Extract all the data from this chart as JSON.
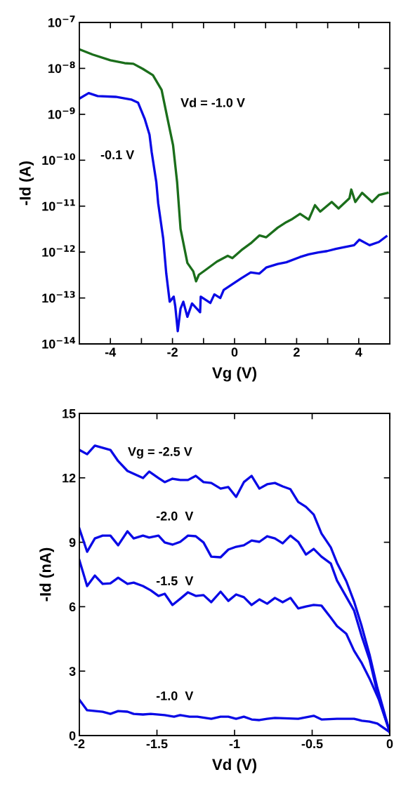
{
  "chart_data": [
    {
      "type": "line",
      "xlabel": "Vg (V)",
      "ylabel": "-Id (A)",
      "log": "y",
      "xlim": [
        -5,
        5
      ],
      "ylim": [
        1e-14,
        1e-07
      ],
      "xticks": [
        -4,
        {
          "value": -3,
          "label": null
        },
        -2,
        {
          "value": -1,
          "label": null
        },
        0,
        {
          "value": 1,
          "label": null
        },
        2,
        {
          "value": 3,
          "label": null
        },
        4
      ],
      "yticks": [
        {
          "value": 1e-14,
          "label": "10$^{−14}$"
        },
        {
          "value": 1e-13,
          "label": "10$^{−13}$"
        },
        {
          "value": 1e-12,
          "label": "10$^{−12}$"
        },
        {
          "value": 1e-11,
          "label": "10$^{−11}$"
        },
        {
          "value": 1e-10,
          "label": "10$^{−10}$"
        },
        {
          "value": 1e-09,
          "label": "10$^{−9}$"
        },
        {
          "value": 1e-08,
          "label": "10$^{−8}$"
        },
        {
          "value": 1e-07,
          "label": "10$^{−7}$"
        }
      ],
      "grid": false,
      "legend": false,
      "marker": "none",
      "line_style": "solid",
      "series": [
        {
          "name": "Vd = -1.0 V",
          "color": "#1b6e1b",
          "x": [
            -5,
            -4.57,
            -4.0,
            -3.54,
            -3.26,
            -2.96,
            -2.63,
            -2.35,
            -2.17,
            -1.98,
            -1.85,
            -1.74,
            -1.52,
            -1.33,
            -1.24,
            -1.15,
            -0.93,
            -0.57,
            -0.22,
            -0.07,
            0.22,
            0.52,
            0.8,
            1.02,
            1.39,
            1.67,
            1.83,
            2.11,
            2.39,
            2.59,
            2.76,
            3.13,
            3.35,
            3.7,
            3.76,
            3.89,
            4.11,
            4.43,
            4.65,
            4.93
          ],
          "values": [
            2.6e-08,
            2e-08,
            1.5e-08,
            1.3e-08,
            1.26e-08,
            9.8e-09,
            7.1e-09,
            3.4e-09,
            8.7e-10,
            2.1e-10,
            3.3e-11,
            3.2e-12,
            5.8e-13,
            3.8e-13,
            2.3e-13,
            3.2e-13,
            4.1e-13,
            6.2e-13,
            8.3e-13,
            7.4e-13,
            1.1e-12,
            1.55e-12,
            2.3e-12,
            2.1e-12,
            3.4e-12,
            4.5e-12,
            5.1e-12,
            6.8e-12,
            5.1e-12,
            1.05e-11,
            7.6e-12,
            1.23e-11,
            8.9e-12,
            1.48e-11,
            2.3e-11,
            1.23e-11,
            1.95e-11,
            1.23e-11,
            1.74e-11,
            1.95e-11
          ]
        },
        {
          "name": "-0.1 V",
          "color": "#0a0ae6",
          "x": [
            -5,
            -4.7,
            -4.41,
            -3.83,
            -3.33,
            -3.11,
            -2.89,
            -2.74,
            -2.67,
            -2.52,
            -2.46,
            -2.3,
            -2.2,
            -2.09,
            -1.96,
            -1.91,
            -1.83,
            -1.74,
            -1.65,
            -1.52,
            -1.37,
            -1.11,
            -1.09,
            -0.78,
            -0.65,
            -0.46,
            -0.35,
            -0.07,
            0.22,
            0.52,
            0.8,
            1.02,
            1.39,
            1.67,
            2.11,
            2.39,
            2.7,
            2.98,
            3.26,
            3.48,
            3.85,
            4.02,
            4.35,
            4.65,
            4.89
          ],
          "values": [
            2.2e-09,
            2.9e-09,
            2.5e-09,
            2.4e-09,
            2.1e-09,
            1.8e-09,
            7.8e-10,
            3.6e-10,
            1.5e-10,
            3.3e-11,
            1.15e-11,
            2e-12,
            3.4e-13,
            8.3e-14,
            1.07e-13,
            6.6e-14,
            1.9e-14,
            5.9e-14,
            8.3e-14,
            3.9e-14,
            7.6e-14,
            4.9e-14,
            1.07e-13,
            7.8e-14,
            1.2e-13,
            1e-13,
            1.5e-13,
            2e-13,
            2.7e-13,
            3.6e-13,
            3.4e-13,
            4.6e-13,
            5.5e-13,
            6e-13,
            7.8e-13,
            8.9e-13,
            9.8e-13,
            1.05e-12,
            1.17e-12,
            1.26e-12,
            1.41e-12,
            1.86e-12,
            1.41e-12,
            1.66e-12,
            2.2e-12
          ]
        }
      ]
    },
    {
      "type": "line",
      "xlabel": "Vd (V)",
      "ylabel": "-Id (nA)",
      "xlim": [
        -2,
        0
      ],
      "ylim": [
        0,
        15
      ],
      "xticks": [
        -2,
        -1.5,
        -1,
        -0.5,
        0
      ],
      "yticks": [
        0,
        3,
        6,
        9,
        12,
        15
      ],
      "grid": false,
      "legend": false,
      "marker": "none",
      "line_style": "solid",
      "series": [
        {
          "name": "Vg = -2.5 V",
          "color": "#0a0ae6",
          "x": [
            -2,
            -1.95,
            -1.9,
            -1.8,
            -1.75,
            -1.69,
            -1.65,
            -1.59,
            -1.55,
            -1.49,
            -1.45,
            -1.4,
            -1.35,
            -1.3,
            -1.25,
            -1.2,
            -1.15,
            -1.09,
            -1.04,
            -0.99,
            -0.94,
            -0.89,
            -0.84,
            -0.79,
            -0.74,
            -0.69,
            -0.64,
            -0.59,
            -0.54,
            -0.49,
            -0.44,
            -0.38,
            -0.34,
            -0.28,
            -0.23,
            -0.18,
            -0.13,
            -0.08,
            0
          ],
          "values": [
            13.3,
            13.1,
            13.5,
            13.3,
            12.78,
            12.32,
            12.19,
            11.99,
            12.29,
            11.99,
            11.8,
            11.96,
            11.9,
            11.9,
            12.09,
            11.8,
            11.76,
            11.5,
            11.57,
            11.11,
            11.8,
            12.09,
            11.5,
            11.7,
            11.76,
            11.6,
            11.47,
            10.88,
            10.65,
            10.29,
            9.41,
            8.76,
            8.04,
            7.19,
            6.24,
            5.07,
            3.76,
            2.22,
            0.16
          ]
        },
        {
          "name": "-2.0  V",
          "color": "#0a0ae6",
          "x": [
            -2,
            -1.95,
            -1.9,
            -1.85,
            -1.8,
            -1.75,
            -1.69,
            -1.65,
            -1.59,
            -1.55,
            -1.49,
            -1.45,
            -1.4,
            -1.35,
            -1.3,
            -1.25,
            -1.2,
            -1.15,
            -1.09,
            -1.04,
            -0.99,
            -0.94,
            -0.89,
            -0.84,
            -0.79,
            -0.74,
            -0.69,
            -0.64,
            -0.59,
            -0.54,
            -0.49,
            -0.44,
            -0.38,
            -0.34,
            -0.23,
            -0.18,
            -0.13,
            -0.08,
            0
          ],
          "values": [
            9.64,
            8.56,
            9.18,
            9.31,
            9.31,
            8.86,
            9.51,
            9.18,
            9.31,
            9.22,
            9.31,
            8.99,
            8.89,
            9.02,
            9.31,
            9.28,
            8.99,
            8.33,
            8.3,
            8.66,
            8.79,
            8.86,
            9.08,
            9.02,
            9.28,
            9.18,
            8.95,
            9.31,
            9.02,
            8.43,
            8.69,
            8.33,
            8.01,
            7.22,
            5.82,
            4.61,
            3.53,
            1.99,
            0.16
          ]
        },
        {
          "name": "-1.5  V",
          "color": "#0a0ae6",
          "x": [
            -2,
            -1.95,
            -1.9,
            -1.85,
            -1.8,
            -1.75,
            -1.69,
            -1.65,
            -1.59,
            -1.54,
            -1.49,
            -1.45,
            -1.4,
            -1.35,
            -1.3,
            -1.25,
            -1.2,
            -1.15,
            -1.09,
            -1.04,
            -0.99,
            -0.94,
            -0.89,
            -0.84,
            -0.79,
            -0.74,
            -0.69,
            -0.64,
            -0.59,
            -0.54,
            -0.49,
            -0.44,
            -0.38,
            -0.34,
            -0.28,
            -0.23,
            -0.18,
            -0.13,
            -0.07,
            0
          ],
          "values": [
            8.17,
            6.96,
            7.45,
            7.06,
            7.09,
            7.35,
            7.06,
            7.12,
            6.96,
            6.76,
            6.5,
            6.6,
            6.08,
            6.37,
            6.67,
            6.5,
            6.54,
            6.21,
            6.7,
            6.27,
            6.57,
            6.44,
            6.08,
            6.34,
            6.14,
            6.41,
            6.21,
            6.41,
            5.92,
            6.01,
            6.08,
            6.05,
            5.49,
            5.1,
            4.74,
            3.95,
            3.37,
            2.65,
            1.67,
            0.16
          ]
        },
        {
          "name": "-1.0  V",
          "color": "#0a0ae6",
          "x": [
            -2,
            -1.95,
            -1.85,
            -1.8,
            -1.75,
            -1.69,
            -1.65,
            -1.59,
            -1.54,
            -1.45,
            -1.39,
            -1.35,
            -1.29,
            -1.24,
            -1.15,
            -1.09,
            -1.04,
            -0.99,
            -0.94,
            -0.89,
            -0.84,
            -0.79,
            -0.74,
            -0.59,
            -0.49,
            -0.44,
            -0.34,
            -0.23,
            -0.18,
            -0.13,
            -0.08,
            0
          ],
          "values": [
            1.67,
            1.18,
            1.11,
            1.01,
            1.14,
            1.11,
            1.01,
            0.98,
            1.01,
            0.95,
            0.88,
            0.95,
            0.88,
            0.88,
            0.78,
            0.88,
            0.88,
            0.78,
            0.88,
            0.75,
            0.72,
            0.78,
            0.82,
            0.78,
            0.92,
            0.75,
            0.78,
            0.78,
            0.69,
            0.65,
            0.56,
            0.16
          ]
        }
      ]
    }
  ]
}
